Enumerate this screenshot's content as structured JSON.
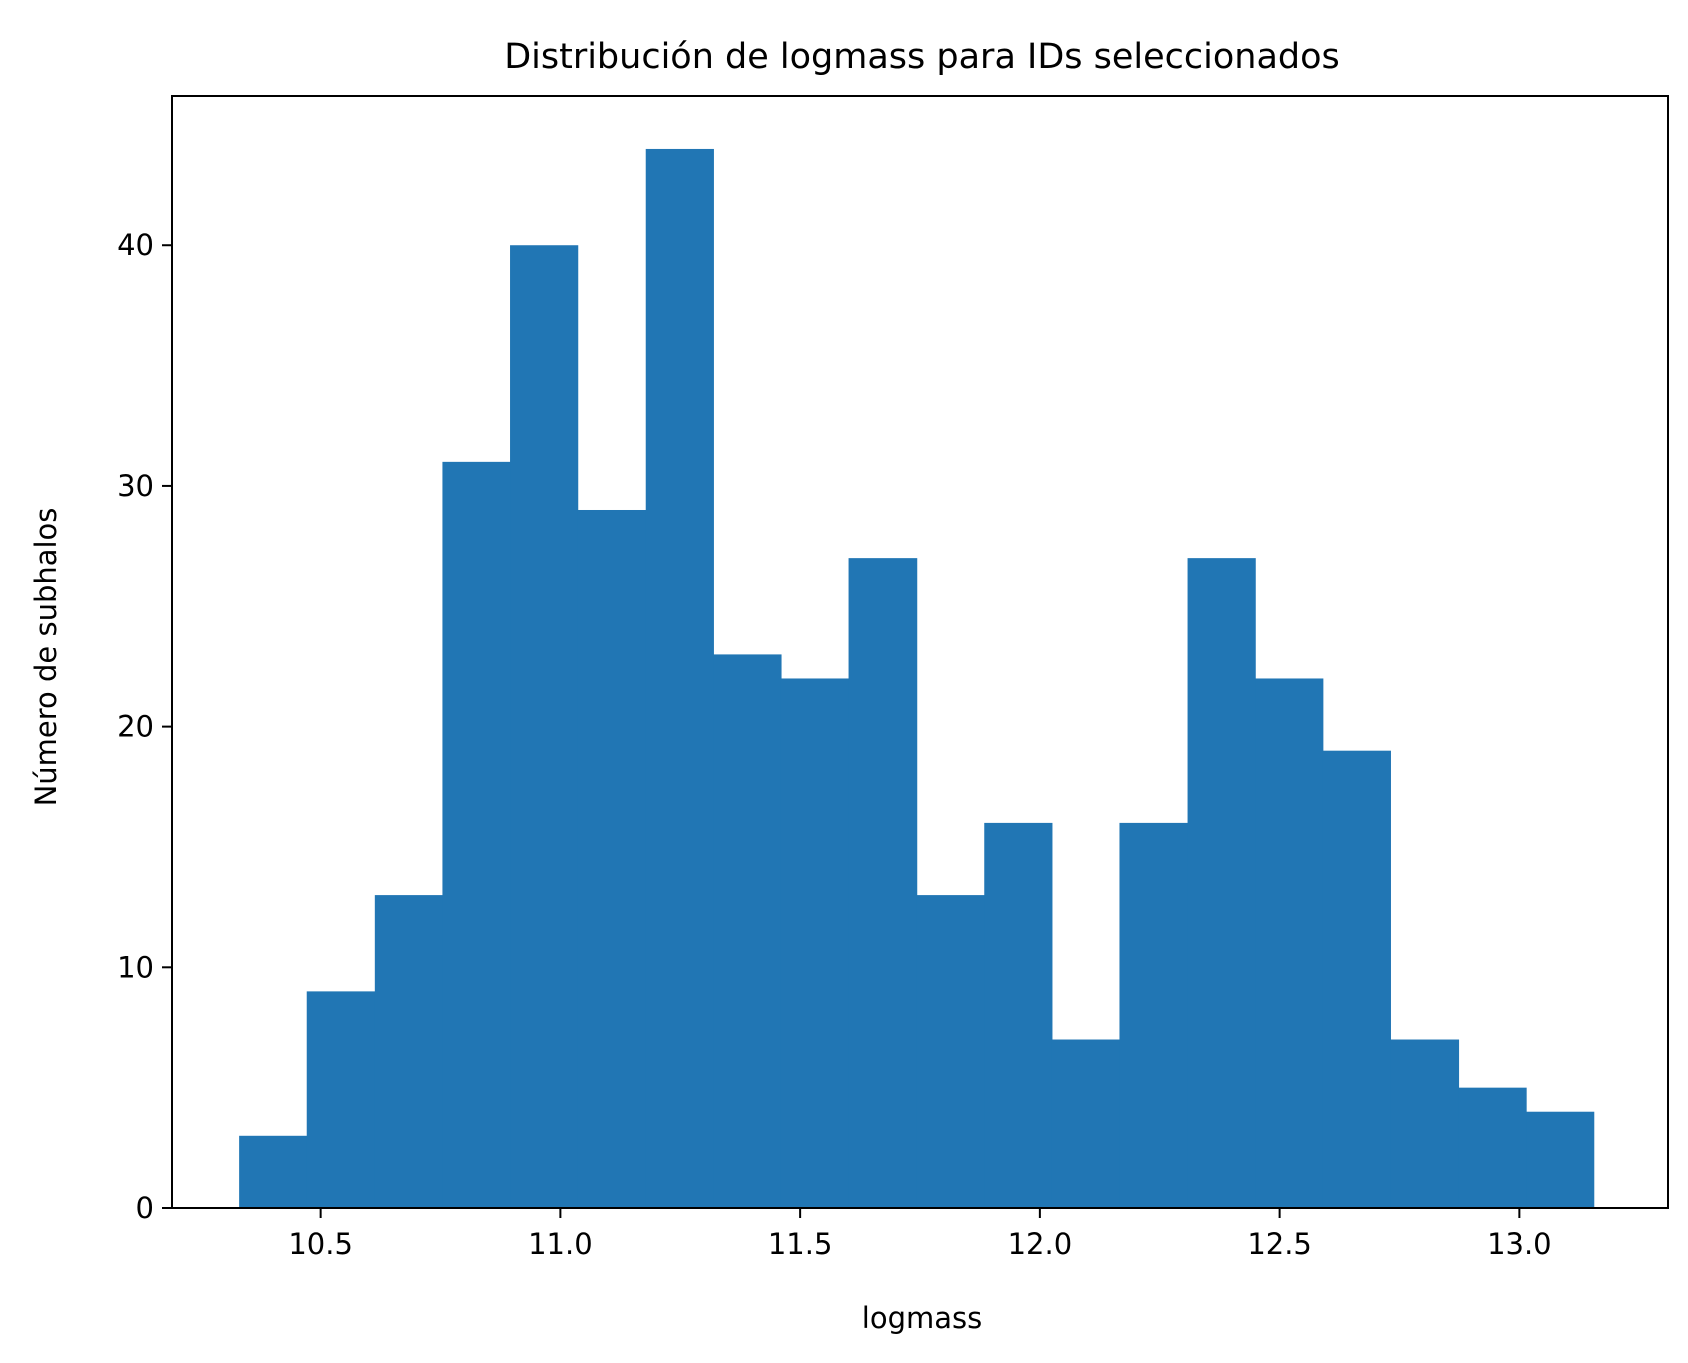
{
  "chart_data": {
    "type": "bar",
    "subtype": "histogram",
    "title": "Distribución de logmass para IDs seleccionados",
    "xlabel": "logmass",
    "ylabel": "Número de subhalos",
    "xlim": [
      10.19,
      13.31
    ],
    "ylim": [
      0,
      46.2
    ],
    "x_ticks": [
      "10.5",
      "11.0",
      "11.5",
      "12.0",
      "12.5",
      "13.0"
    ],
    "y_ticks": [
      "0",
      "10",
      "20",
      "30",
      "40"
    ],
    "bin_edges": [
      10.33,
      10.471,
      10.613,
      10.754,
      10.895,
      11.036,
      11.178,
      11.319,
      11.46,
      11.601,
      11.743,
      11.884,
      12.025,
      12.166,
      12.308,
      12.449,
      12.59,
      12.731,
      12.873,
      13.014,
      13.155
    ],
    "counts": [
      3,
      9,
      13,
      31,
      40,
      29,
      44,
      23,
      22,
      27,
      13,
      16,
      7,
      16,
      27,
      22,
      19,
      7,
      5,
      4
    ],
    "grid": false,
    "legend": "none",
    "colors": {
      "bar": "#2176b4",
      "axis": "#000000",
      "background": "#ffffff"
    }
  }
}
